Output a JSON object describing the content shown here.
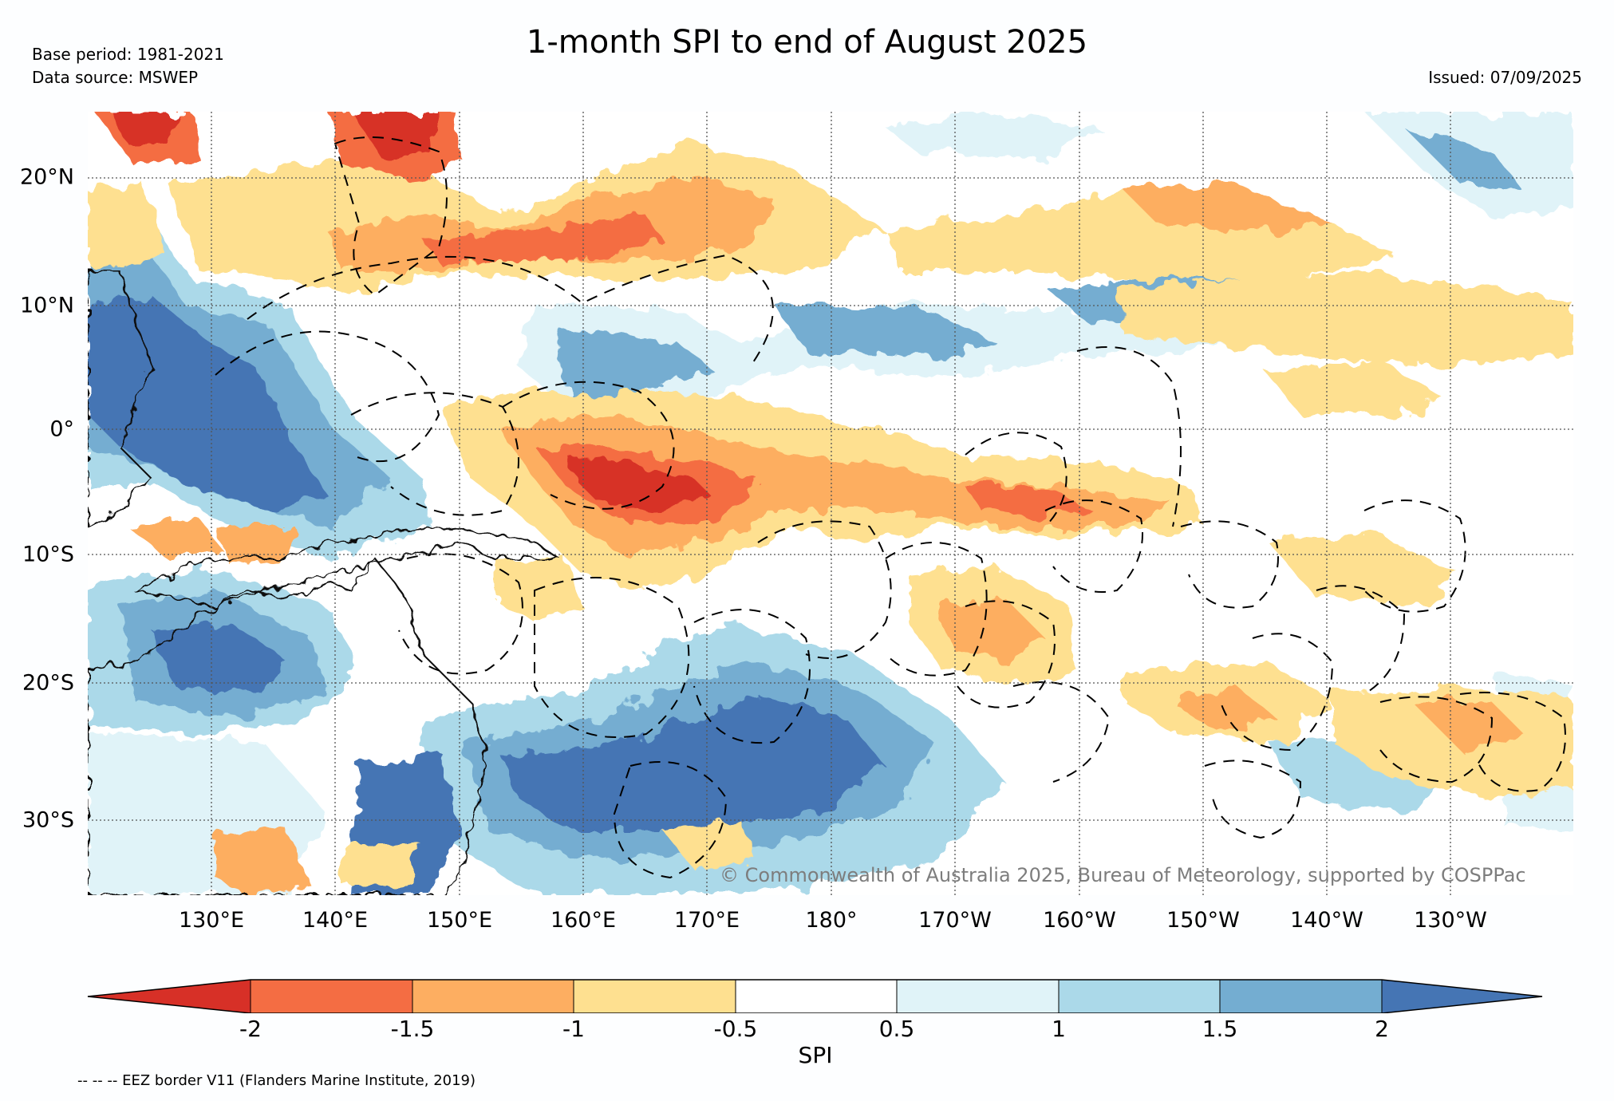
{
  "title": "1-month SPI to end of August 2025",
  "base_period": "Base period: 1981-2021",
  "data_source": "Data source: MSWEP",
  "issued": "Issued: 07/09/2025",
  "copyright": "© Commonwealth of Australia 2025, Bureau of Meteorology, supported by COSPPac",
  "eez_note": "-- -- -- EEZ border V11 (Flanders Marine Institute, 2019)",
  "map": {
    "lat_labels": [
      "20°N",
      "10°N",
      "0°",
      "10°S",
      "20°S",
      "30°S"
    ],
    "lon_labels": [
      "130°E",
      "140°E",
      "150°E",
      "160°E",
      "170°E",
      "180°",
      "170°W",
      "160°W",
      "150°W",
      "140°W",
      "130°W"
    ],
    "extent": {
      "lon_min": 120,
      "lon_max": 240,
      "lat_min": -36,
      "lat_max": 25
    }
  },
  "colorbar": {
    "label": "SPI",
    "ticks": [
      "-2",
      "-1.5",
      "-1",
      "-0.5",
      "0.5",
      "1",
      "1.5",
      "2"
    ],
    "colors": [
      "#d73027",
      "#f46d43",
      "#fdae61",
      "#fee090",
      "#ffffff",
      "#e0f3f8",
      "#abd9e9",
      "#74add1",
      "#4575b4"
    ]
  }
}
